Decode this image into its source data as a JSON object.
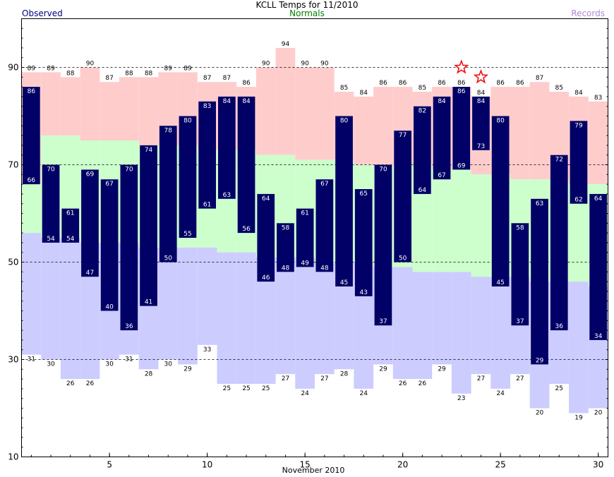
{
  "title": "KCLL Temps for 11/2010",
  "legend": {
    "observed": "Observed",
    "normals": "Normals",
    "records": "Records"
  },
  "colors": {
    "observed": "#000066",
    "observed_text": "#ffffff",
    "normal": "#ccffcc",
    "record_high": "#ffcccc",
    "record_low": "#ccccff",
    "star": "#ee1111"
  },
  "chart_data": {
    "type": "bar",
    "xlabel": "November 2010",
    "ylabel": "",
    "xlim": [
      0.5,
      30.5
    ],
    "ylim": [
      10,
      100
    ],
    "x_ticks": [
      5,
      10,
      15,
      20,
      25,
      30
    ],
    "y_ticks": [
      10,
      30,
      50,
      70,
      90
    ],
    "gridlines_dashed_at": [
      30,
      50,
      70,
      90
    ],
    "days": [
      1,
      2,
      3,
      4,
      5,
      6,
      7,
      8,
      9,
      10,
      11,
      12,
      13,
      14,
      15,
      16,
      17,
      18,
      19,
      20,
      21,
      22,
      23,
      24,
      25,
      26,
      27,
      28,
      29,
      30
    ],
    "series": [
      {
        "name": "Observed",
        "high": [
          86,
          70,
          61,
          69,
          67,
          70,
          74,
          78,
          80,
          83,
          84,
          84,
          64,
          58,
          61,
          67,
          80,
          65,
          70,
          77,
          82,
          84,
          86,
          84,
          80,
          58,
          63,
          72,
          79,
          64
        ],
        "low": [
          66,
          54,
          54,
          47,
          40,
          36,
          41,
          50,
          55,
          61,
          63,
          56,
          46,
          48,
          49,
          48,
          45,
          43,
          37,
          50,
          64,
          67,
          69,
          73,
          45,
          37,
          29,
          36,
          62,
          34
        ]
      },
      {
        "name": "Normals",
        "high": [
          66,
          76,
          76,
          75,
          75,
          75,
          74,
          74,
          74,
          73,
          73,
          73,
          72,
          72,
          71,
          71,
          71,
          70,
          70,
          70,
          70,
          69,
          69,
          68,
          68,
          67,
          67,
          67,
          66,
          66
        ],
        "low": [
          56,
          55,
          55,
          54,
          54,
          54,
          53,
          53,
          53,
          53,
          52,
          52,
          51,
          51,
          51,
          50,
          50,
          50,
          49,
          49,
          48,
          48,
          48,
          47,
          47,
          47,
          46,
          46,
          46,
          45
        ]
      },
      {
        "name": "Records",
        "high": [
          89,
          89,
          88,
          90,
          87,
          88,
          88,
          89,
          89,
          87,
          87,
          86,
          90,
          94,
          90,
          90,
          85,
          84,
          86,
          86,
          85,
          86,
          86,
          84,
          86,
          86,
          87,
          85,
          84,
          83
        ],
        "low": [
          31,
          30,
          26,
          26,
          30,
          31,
          28,
          30,
          29,
          33,
          25,
          25,
          25,
          27,
          24,
          27,
          28,
          24,
          29,
          26,
          26,
          29,
          23,
          27,
          24,
          27,
          20,
          25,
          19,
          20
        ]
      }
    ],
    "record_high_stars": [
      23,
      24
    ]
  }
}
